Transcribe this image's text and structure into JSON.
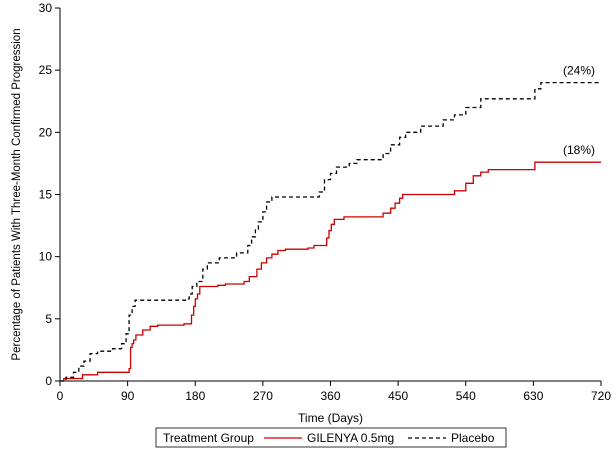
{
  "chart_data": {
    "type": "line",
    "xlabel": "Time (Days)",
    "ylabel": "Percentage of Patients With Three-Month Confirmed Progression",
    "xlim": [
      0,
      720
    ],
    "ylim": [
      0,
      30
    ],
    "x_ticks": [
      0,
      90,
      180,
      270,
      360,
      450,
      540,
      630,
      720
    ],
    "y_ticks": [
      0,
      5,
      10,
      15,
      20,
      25,
      30
    ],
    "grid": false,
    "legend": {
      "title": "Treatment Group",
      "placement": "bottom"
    },
    "series": [
      {
        "name": "GILENYA 0.5mg",
        "color": "#cc0000",
        "style": "solid",
        "end_label": "(18%)",
        "steps": [
          [
            0,
            0
          ],
          [
            5,
            0.2
          ],
          [
            30,
            0.5
          ],
          [
            50,
            0.7
          ],
          [
            92,
            1.0
          ],
          [
            94,
            2.7
          ],
          [
            96,
            3.0
          ],
          [
            98,
            3.3
          ],
          [
            101,
            3.7
          ],
          [
            110,
            4.1
          ],
          [
            120,
            4.4
          ],
          [
            130,
            4.5
          ],
          [
            165,
            4.6
          ],
          [
            175,
            5.3
          ],
          [
            178,
            6.0
          ],
          [
            180,
            6.6
          ],
          [
            183,
            7.0
          ],
          [
            186,
            7.6
          ],
          [
            210,
            7.7
          ],
          [
            220,
            7.8
          ],
          [
            245,
            8.0
          ],
          [
            252,
            8.4
          ],
          [
            262,
            9.0
          ],
          [
            268,
            9.5
          ],
          [
            275,
            9.9
          ],
          [
            282,
            10.2
          ],
          [
            290,
            10.5
          ],
          [
            300,
            10.6
          ],
          [
            330,
            10.7
          ],
          [
            338,
            10.9
          ],
          [
            355,
            11.5
          ],
          [
            358,
            12.1
          ],
          [
            361,
            12.6
          ],
          [
            365,
            13.0
          ],
          [
            378,
            13.2
          ],
          [
            430,
            13.5
          ],
          [
            440,
            13.9
          ],
          [
            446,
            14.3
          ],
          [
            452,
            14.7
          ],
          [
            456,
            15.0
          ],
          [
            525,
            15.3
          ],
          [
            540,
            15.9
          ],
          [
            550,
            16.5
          ],
          [
            560,
            16.8
          ],
          [
            570,
            17.0
          ],
          [
            632,
            17.6
          ],
          [
            720,
            17.6
          ]
        ]
      },
      {
        "name": "Placebo",
        "color": "#000000",
        "style": "dashed",
        "end_label": "(24%)",
        "steps": [
          [
            0,
            0
          ],
          [
            8,
            0.3
          ],
          [
            18,
            0.7
          ],
          [
            25,
            1.2
          ],
          [
            32,
            1.6
          ],
          [
            40,
            2.2
          ],
          [
            50,
            2.4
          ],
          [
            70,
            2.6
          ],
          [
            82,
            3.0
          ],
          [
            88,
            3.8
          ],
          [
            92,
            5.3
          ],
          [
            96,
            6.0
          ],
          [
            100,
            6.5
          ],
          [
            168,
            6.6
          ],
          [
            172,
            7.0
          ],
          [
            176,
            7.6
          ],
          [
            182,
            8.0
          ],
          [
            190,
            9.0
          ],
          [
            196,
            9.5
          ],
          [
            212,
            9.9
          ],
          [
            235,
            10.3
          ],
          [
            250,
            10.9
          ],
          [
            255,
            11.6
          ],
          [
            260,
            12.2
          ],
          [
            264,
            12.8
          ],
          [
            270,
            13.6
          ],
          [
            275,
            14.4
          ],
          [
            282,
            14.8
          ],
          [
            345,
            15.2
          ],
          [
            352,
            16.2
          ],
          [
            360,
            16.7
          ],
          [
            368,
            17.2
          ],
          [
            385,
            17.5
          ],
          [
            395,
            17.8
          ],
          [
            430,
            18.3
          ],
          [
            440,
            19.0
          ],
          [
            452,
            19.6
          ],
          [
            460,
            20.0
          ],
          [
            480,
            20.5
          ],
          [
            510,
            21.0
          ],
          [
            525,
            21.4
          ],
          [
            540,
            22.0
          ],
          [
            560,
            22.7
          ],
          [
            632,
            23.5
          ],
          [
            640,
            24.0
          ],
          [
            720,
            24.0
          ]
        ]
      }
    ]
  }
}
